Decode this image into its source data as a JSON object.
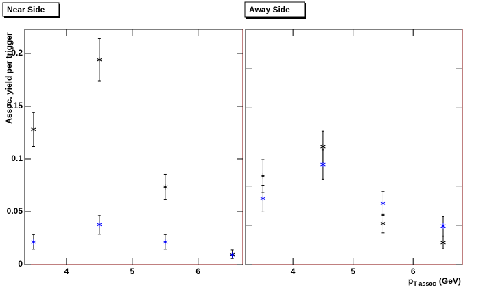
{
  "chart_data": [
    {
      "type": "scatter",
      "title": "Near Side",
      "y_label": "Assoc. yield per trigger",
      "xlim": [
        3.365,
        6.68
      ],
      "xticks": [
        4,
        5,
        6
      ],
      "ylim": [
        0,
        0.2227
      ],
      "yticks": [
        0,
        0.05,
        0.1,
        0.15,
        0.2
      ],
      "series": [
        {
          "color": "#000000",
          "x": [
            3.5,
            4.5,
            5.5,
            6.52
          ],
          "values": [
            0.128,
            0.194,
            0.0734,
            0.0097
          ],
          "errors": [
            0.016,
            0.02,
            0.012,
            0.004
          ]
        },
        {
          "color": "#0000ff",
          "x": [
            3.5,
            4.5,
            5.5,
            6.52
          ],
          "values": [
            0.0214,
            0.0377,
            0.0214,
            0.009
          ],
          "errors": [
            0.007,
            0.009,
            0.007,
            0.003
          ]
        }
      ]
    },
    {
      "type": "scatter",
      "title": "Away Side",
      "x_label": "p",
      "x_label_sub": "T assoc",
      "x_label_unit": "(GeV)",
      "xlim": [
        3.21,
        6.82
      ],
      "xticks": [
        4,
        5,
        6
      ],
      "ylim": [
        0,
        0.15
      ],
      "yticks": [
        0,
        0.025,
        0.05,
        0.075,
        0.1,
        0.125
      ],
      "series": [
        {
          "color": "#000000",
          "x": [
            3.5,
            4.5,
            5.5,
            6.5
          ],
          "values": [
            0.0564,
            0.0752,
            0.0262,
            0.014
          ],
          "errors": [
            0.0105,
            0.01,
            0.006,
            0.004
          ]
        },
        {
          "color": "#0000ff",
          "x": [
            3.5,
            4.5,
            5.5,
            6.5
          ],
          "values": [
            0.042,
            0.0638,
            0.039,
            0.0245
          ],
          "errors": [
            0.0085,
            0.0093,
            0.0077,
            0.0063
          ]
        }
      ]
    }
  ]
}
